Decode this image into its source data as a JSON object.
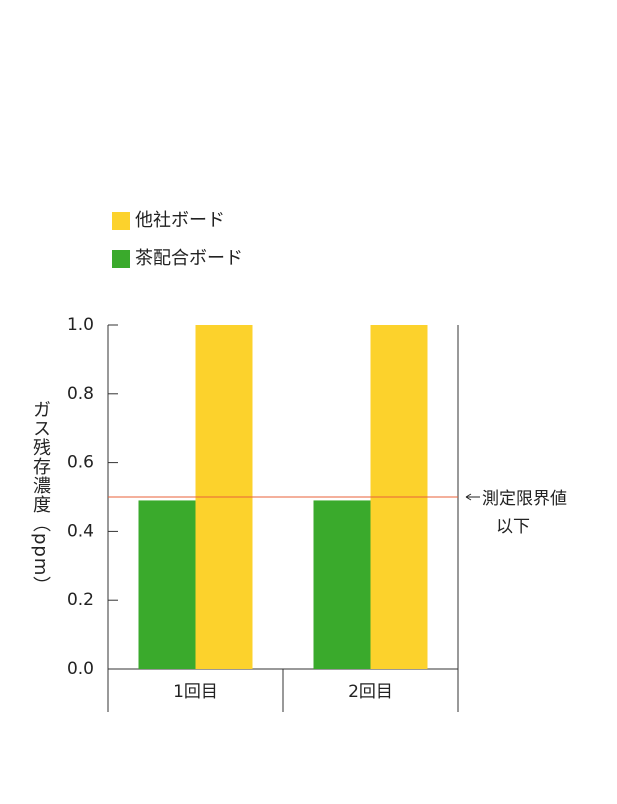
{
  "chart_data": {
    "type": "bar",
    "y_label": "ガス残存濃度（ppm）",
    "categories": [
      "1回目",
      "2回目"
    ],
    "series": [
      {
        "name": "他社ボード",
        "color": "#fcd22c",
        "values": [
          1.0,
          1.0
        ]
      },
      {
        "name": "茶配合ボード",
        "color": "#3aaa2c",
        "values": [
          0.49,
          0.49
        ]
      }
    ],
    "bar_order": [
      1,
      0
    ],
    "ylim": [
      0,
      1
    ],
    "yticks": [
      {
        "value": 0,
        "label": "0.0"
      },
      0.2,
      0.4,
      0.6,
      0.8,
      {
        "value": 1,
        "label": "1.0"
      }
    ],
    "reference_line": {
      "value": 0.5,
      "color": "#e8623a",
      "label": [
        "測定限界値",
        "以下"
      ]
    },
    "grid": false
  }
}
